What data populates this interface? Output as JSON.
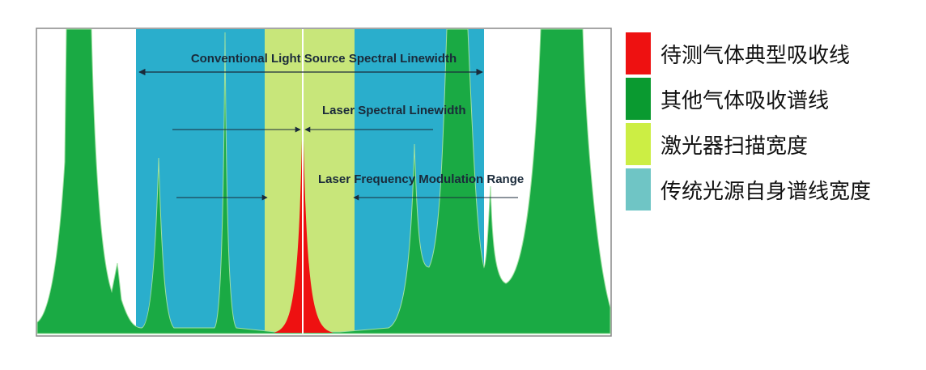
{
  "diagram": {
    "annotations": {
      "conventional": "Conventional Light Source Spectral Linewidth",
      "laser_linewidth": "Laser Spectral Linewidth",
      "modulation": "Laser Frequency Modulation Range"
    },
    "legend": [
      {
        "label": "待测气体典型吸收线",
        "color": "#ee1111"
      },
      {
        "label": "其他气体吸收谱线",
        "color": "#0a9a30"
      },
      {
        "label": "激光器扫描宽度",
        "color": "#ccee44"
      },
      {
        "label": "传统光源自身谱线宽度",
        "color": "#6fc5c5"
      }
    ],
    "colors": {
      "conventional_band": "#2aaecc",
      "laser_scan_band": "#c8e67a",
      "other_gas": "#1aaa44",
      "target_gas": "#ee1111"
    }
  }
}
